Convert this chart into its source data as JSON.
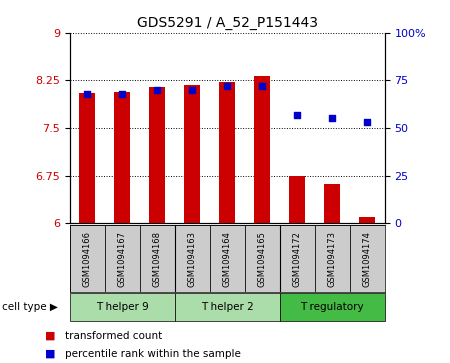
{
  "title": "GDS5291 / A_52_P151443",
  "samples": [
    "GSM1094166",
    "GSM1094167",
    "GSM1094168",
    "GSM1094163",
    "GSM1094164",
    "GSM1094165",
    "GSM1094172",
    "GSM1094173",
    "GSM1094174"
  ],
  "transformed_count": [
    8.05,
    8.07,
    8.15,
    8.18,
    8.22,
    8.32,
    6.75,
    6.62,
    6.1
  ],
  "percentile_rank": [
    68,
    68,
    70,
    70,
    72,
    72,
    57,
    55,
    53
  ],
  "bar_color": "#cc0000",
  "dot_color": "#0000cc",
  "ylim_left": [
    6,
    9
  ],
  "ylim_right": [
    0,
    100
  ],
  "yticks_left": [
    6,
    6.75,
    7.5,
    8.25,
    9
  ],
  "yticks_right": [
    0,
    25,
    50,
    75,
    100
  ],
  "ytick_labels_right": [
    "0",
    "25",
    "50",
    "75",
    "100%"
  ],
  "cell_groups": [
    {
      "label": "T helper 9",
      "start": 0,
      "end": 2,
      "color": "#aaddaa"
    },
    {
      "label": "T helper 2",
      "start": 3,
      "end": 5,
      "color": "#aaddaa"
    },
    {
      "label": "T regulatory",
      "start": 6,
      "end": 8,
      "color": "#44bb44"
    }
  ],
  "cell_type_label": "cell type",
  "legend_bar_label": "transformed count",
  "legend_dot_label": "percentile rank within the sample",
  "bar_bottom": 6,
  "tick_label_color_left": "#cc0000",
  "tick_label_color_right": "#0000cc",
  "sample_box_color": "#cccccc",
  "bar_width": 0.45
}
